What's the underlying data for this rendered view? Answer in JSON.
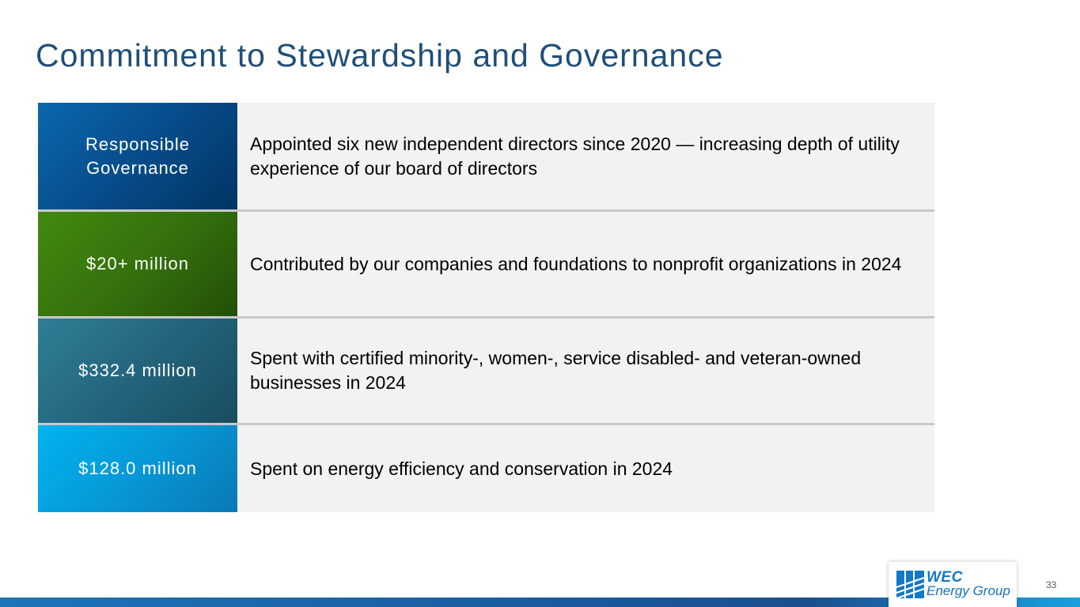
{
  "slide": {
    "title": "Commitment to Stewardship and Governance",
    "page_number": "33"
  },
  "rows": [
    {
      "label": "Responsible Governance",
      "description": "Appointed six new independent directors since 2020 — increasing depth of utility experience of our board of directors",
      "color": "#0b5a9e"
    },
    {
      "label": "$20+ million",
      "description": "Contributed by our companies and foundations to nonprofit organizations in 2024",
      "color": "#3a7a0e"
    },
    {
      "label": "$332.4 million",
      "description": "Spent with certified minority-, women-, service disabled- and veteran-owned businesses in 2024",
      "color": "#22637a"
    },
    {
      "label": "$128.0 million",
      "description": "Spent on energy efficiency and conservation in 2024",
      "color": "#0a9ede"
    }
  ],
  "logo": {
    "name": "WEC",
    "subtitle": "Energy Group",
    "icon": "wec-logo-icon",
    "color": "#1478c8"
  }
}
